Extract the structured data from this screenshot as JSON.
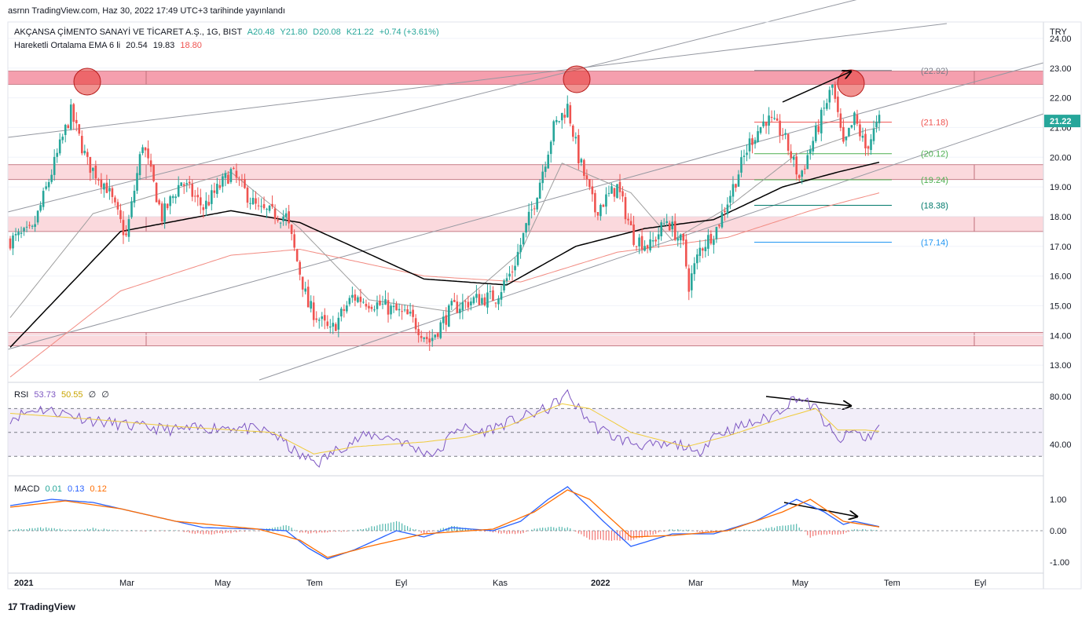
{
  "header": {
    "publish_line": "asrnn TradingView.com, Haz 30, 2022 17:49 UTC+3 tarihinde yayınlandı"
  },
  "legend": {
    "symbol": "AKÇANSA ÇİMENTO SANAYİ VE TİCARET A.Ş., 1G, BIST",
    "open": "A20.48",
    "high": "Y21.80",
    "low": "D20.08",
    "close": "K21.22",
    "change": "+0.74 (+3.61%)",
    "ema_label": "Hareketli Ortalama EMA 6 li",
    "ema_values": [
      "20.54",
      "19.83",
      "18.80"
    ]
  },
  "rsi_legend": {
    "label": "RSI",
    "values": [
      "53.73",
      "50.55",
      "∅",
      "∅"
    ]
  },
  "macd_legend": {
    "label": "MACD",
    "values": [
      "0.01",
      "0.13",
      "0.12"
    ]
  },
  "currency": "TRY",
  "last_price": "21.22",
  "footer": {
    "brand": "TradingView",
    "logo": "17"
  },
  "colors": {
    "up": "#26a69a",
    "down": "#ef5350",
    "zone": "#f8a5b1",
    "rsi": "#7e57c2",
    "rsi_ma": "#f0cb3a",
    "macd": "#2962ff",
    "signal": "#ff6d00",
    "ema1": "#9e9e9e",
    "ema2": "#000000",
    "ema3": "#f28b82"
  },
  "chart_data": [
    {
      "type": "candlestick",
      "x_ticks": [
        "2021",
        "Mar",
        "May",
        "Tem",
        "Eyl",
        "Kas",
        "2022",
        "Mar",
        "May",
        "Tem",
        "Eyl"
      ],
      "y_ticks": [
        "24.00",
        "23.00",
        "22.00",
        "21.00",
        "20.00",
        "19.00",
        "18.00",
        "17.00",
        "16.00",
        "15.00",
        "14.00",
        "13.00"
      ],
      "ylim": [
        12.5,
        24.5
      ],
      "price_path": [
        [
          0,
          17.2
        ],
        [
          8,
          17.5
        ],
        [
          15,
          19.5
        ],
        [
          22,
          21.5
        ],
        [
          28,
          19.8
        ],
        [
          35,
          19.0
        ],
        [
          42,
          17.3
        ],
        [
          48,
          20.5
        ],
        [
          55,
          18.0
        ],
        [
          62,
          19.2
        ],
        [
          70,
          18.3
        ],
        [
          80,
          19.5
        ],
        [
          90,
          18.2
        ],
        [
          100,
          18.0
        ],
        [
          108,
          15.0
        ],
        [
          116,
          14.1
        ],
        [
          124,
          15.3
        ],
        [
          135,
          15.0
        ],
        [
          145,
          14.6
        ],
        [
          152,
          13.8
        ],
        [
          160,
          14.9
        ],
        [
          168,
          15.2
        ],
        [
          176,
          15.3
        ],
        [
          182,
          16.2
        ],
        [
          190,
          18.5
        ],
        [
          197,
          21.0
        ],
        [
          202,
          21.7
        ],
        [
          206,
          20.0
        ],
        [
          212,
          18.2
        ],
        [
          220,
          19.0
        ],
        [
          226,
          17.3
        ],
        [
          232,
          17.0
        ],
        [
          238,
          17.9
        ],
        [
          244,
          17.0
        ],
        [
          246,
          15.7
        ],
        [
          250,
          16.9
        ],
        [
          256,
          17.6
        ],
        [
          262,
          19.0
        ],
        [
          268,
          20.5
        ],
        [
          274,
          21.3
        ],
        [
          280,
          20.8
        ],
        [
          286,
          19.3
        ],
        [
          292,
          20.8
        ],
        [
          298,
          22.4
        ],
        [
          302,
          20.3
        ],
        [
          306,
          21.3
        ],
        [
          310,
          20.3
        ],
        [
          315,
          21.22
        ]
      ],
      "horizontal_levels": [
        {
          "label": "(22.92)",
          "value": 22.92
        },
        {
          "label": "(21.18)",
          "value": 21.18
        },
        {
          "label": "(20.12)",
          "value": 20.12
        },
        {
          "label": "(19.24)",
          "value": 19.24
        },
        {
          "label": "(18.38)",
          "value": 18.38
        },
        {
          "label": "(17.14)",
          "value": 17.14
        }
      ],
      "zones": [
        [
          22.45,
          22.9
        ],
        [
          19.25,
          19.75
        ],
        [
          17.5,
          18.0
        ],
        [
          13.65,
          14.1
        ]
      ],
      "ema_fast_path": [
        [
          0,
          14.6
        ],
        [
          30,
          18.1
        ],
        [
          80,
          19.5
        ],
        [
          105,
          17.6
        ],
        [
          130,
          15.2
        ],
        [
          160,
          14.8
        ],
        [
          185,
          16.8
        ],
        [
          200,
          19.8
        ],
        [
          225,
          18.8
        ],
        [
          240,
          17.2
        ],
        [
          260,
          18.3
        ],
        [
          285,
          20.1
        ],
        [
          310,
          20.9
        ],
        [
          315,
          21.0
        ]
      ],
      "ema_mid_path": [
        [
          0,
          13.6
        ],
        [
          40,
          17.5
        ],
        [
          80,
          18.2
        ],
        [
          105,
          17.8
        ],
        [
          150,
          15.9
        ],
        [
          180,
          15.7
        ],
        [
          205,
          17.0
        ],
        [
          230,
          17.6
        ],
        [
          255,
          17.9
        ],
        [
          280,
          19.0
        ],
        [
          300,
          19.5
        ],
        [
          315,
          19.83
        ]
      ],
      "ema_slow_path": [
        [
          0,
          12.6
        ],
        [
          40,
          15.5
        ],
        [
          80,
          16.7
        ],
        [
          105,
          16.9
        ],
        [
          150,
          16.0
        ],
        [
          185,
          15.8
        ],
        [
          220,
          16.8
        ],
        [
          260,
          17.3
        ],
        [
          290,
          18.2
        ],
        [
          315,
          18.8
        ]
      ]
    },
    {
      "type": "line",
      "name": "RSI",
      "y_ticks": [
        "80.00",
        "40.00"
      ],
      "ylim": [
        15,
        90
      ],
      "bands": [
        30,
        50,
        70
      ],
      "rsi_path": [
        [
          0,
          62
        ],
        [
          10,
          70
        ],
        [
          20,
          66
        ],
        [
          30,
          60
        ],
        [
          45,
          55
        ],
        [
          60,
          52
        ],
        [
          80,
          55
        ],
        [
          95,
          50
        ],
        [
          105,
          30
        ],
        [
          112,
          25
        ],
        [
          120,
          38
        ],
        [
          130,
          48
        ],
        [
          140,
          45
        ],
        [
          148,
          35
        ],
        [
          155,
          32
        ],
        [
          162,
          55
        ],
        [
          170,
          50
        ],
        [
          185,
          62
        ],
        [
          195,
          70
        ],
        [
          202,
          82
        ],
        [
          206,
          70
        ],
        [
          212,
          55
        ],
        [
          220,
          45
        ],
        [
          228,
          40
        ],
        [
          235,
          38
        ],
        [
          244,
          40
        ],
        [
          248,
          30
        ],
        [
          255,
          48
        ],
        [
          265,
          55
        ],
        [
          275,
          62
        ],
        [
          285,
          80
        ],
        [
          292,
          70
        ],
        [
          300,
          42
        ],
        [
          306,
          52
        ],
        [
          310,
          44
        ],
        [
          315,
          54
        ]
      ],
      "rsi_ma_path": [
        [
          0,
          66
        ],
        [
          30,
          61
        ],
        [
          60,
          55
        ],
        [
          95,
          50
        ],
        [
          110,
          32
        ],
        [
          125,
          38
        ],
        [
          150,
          42
        ],
        [
          165,
          46
        ],
        [
          180,
          55
        ],
        [
          200,
          74
        ],
        [
          210,
          70
        ],
        [
          225,
          50
        ],
        [
          245,
          38
        ],
        [
          260,
          47
        ],
        [
          280,
          62
        ],
        [
          292,
          70
        ],
        [
          300,
          52
        ],
        [
          310,
          52
        ],
        [
          315,
          51
        ]
      ]
    },
    {
      "type": "line",
      "name": "MACD",
      "y_ticks": [
        "1.00",
        "0.00",
        "-1.00"
      ],
      "ylim": [
        -1.3,
        1.7
      ],
      "macd_path": [
        [
          0,
          0.8
        ],
        [
          15,
          1.0
        ],
        [
          30,
          0.9
        ],
        [
          50,
          0.5
        ],
        [
          70,
          0.1
        ],
        [
          90,
          0.05
        ],
        [
          100,
          0.0
        ],
        [
          108,
          -0.55
        ],
        [
          115,
          -0.9
        ],
        [
          125,
          -0.6
        ],
        [
          140,
          0.0
        ],
        [
          150,
          -0.2
        ],
        [
          160,
          0.1
        ],
        [
          175,
          0.0
        ],
        [
          185,
          0.3
        ],
        [
          195,
          1.0
        ],
        [
          202,
          1.4
        ],
        [
          208,
          0.9
        ],
        [
          215,
          0.3
        ],
        [
          225,
          -0.5
        ],
        [
          240,
          -0.1
        ],
        [
          255,
          -0.1
        ],
        [
          270,
          0.3
        ],
        [
          285,
          1.0
        ],
        [
          295,
          0.6
        ],
        [
          302,
          0.2
        ],
        [
          306,
          0.3
        ],
        [
          315,
          0.13
        ]
      ],
      "signal_path": [
        [
          0,
          0.75
        ],
        [
          20,
          0.95
        ],
        [
          40,
          0.7
        ],
        [
          60,
          0.3
        ],
        [
          90,
          0.05
        ],
        [
          105,
          -0.3
        ],
        [
          115,
          -0.85
        ],
        [
          130,
          -0.5
        ],
        [
          150,
          -0.1
        ],
        [
          175,
          0.05
        ],
        [
          190,
          0.6
        ],
        [
          202,
          1.3
        ],
        [
          210,
          1.0
        ],
        [
          225,
          -0.2
        ],
        [
          240,
          -0.15
        ],
        [
          260,
          0.0
        ],
        [
          280,
          0.6
        ],
        [
          290,
          1.0
        ],
        [
          302,
          0.3
        ],
        [
          315,
          0.12
        ]
      ],
      "hist_value": 0.01
    }
  ]
}
